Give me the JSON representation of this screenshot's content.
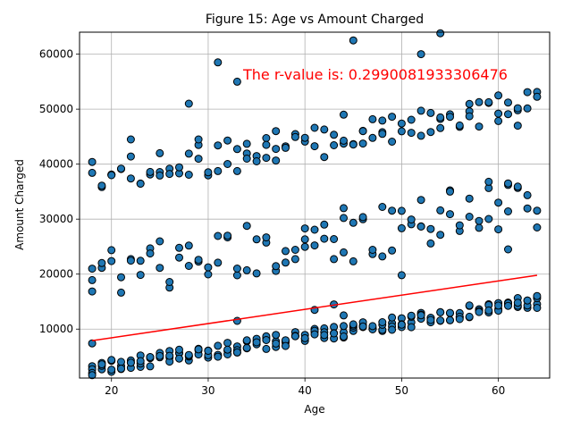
{
  "chart_data": {
    "type": "scatter",
    "title": "Figure 15: Age vs Amount Charged",
    "xlabel": "Age",
    "ylabel": "Amount Charged",
    "xlim": [
      16.7,
      65.3
    ],
    "ylim": [
      1100,
      64000
    ],
    "xticks": [
      20,
      30,
      40,
      50,
      60
    ],
    "yticks": [
      10000,
      20000,
      30000,
      40000,
      50000,
      60000
    ],
    "grid": true,
    "marker_color": "#1f77b4",
    "marker_edge_color": "#000000",
    "annotation": {
      "text": "The r-value is: 0.2990081933306476",
      "color": "#ff0000"
    },
    "regression": {
      "x": [
        18,
        64
      ],
      "y": [
        7900,
        19800
      ],
      "color": "#ff0000"
    },
    "bands": [
      {
        "name": "low",
        "x_start": 18,
        "x_end": 64,
        "y_start": 1500,
        "y_end": 13800,
        "spread": 2400,
        "count": 4
      },
      {
        "name": "middle",
        "x_start": 18,
        "x_end": 64,
        "y_start": 14000,
        "y_end": 28000,
        "spread": 10000,
        "count": 2
      },
      {
        "name": "high",
        "x_start": 18,
        "x_end": 64,
        "y_start": 34500,
        "y_end": 47500,
        "spread": 6000,
        "count": 2
      }
    ],
    "extra_points": [
      {
        "x": 18,
        "y": 7400
      },
      {
        "x": 18,
        "y": 21000
      },
      {
        "x": 20,
        "y": 38000
      },
      {
        "x": 22,
        "y": 44500
      },
      {
        "x": 25,
        "y": 42000
      },
      {
        "x": 28,
        "y": 51000
      },
      {
        "x": 29,
        "y": 44500
      },
      {
        "x": 31,
        "y": 58500
      },
      {
        "x": 33,
        "y": 55000
      },
      {
        "x": 33,
        "y": 11500
      },
      {
        "x": 34,
        "y": 43700
      },
      {
        "x": 36,
        "y": 43500
      },
      {
        "x": 37,
        "y": 46000
      },
      {
        "x": 40,
        "y": 28300
      },
      {
        "x": 41,
        "y": 13500
      },
      {
        "x": 43,
        "y": 14500
      },
      {
        "x": 44,
        "y": 49000
      },
      {
        "x": 44,
        "y": 32000
      },
      {
        "x": 44,
        "y": 12500
      },
      {
        "x": 45,
        "y": 62500
      },
      {
        "x": 46,
        "y": 46000
      },
      {
        "x": 48,
        "y": 45500
      },
      {
        "x": 50,
        "y": 19800
      },
      {
        "x": 52,
        "y": 60000
      },
      {
        "x": 52,
        "y": 33500
      },
      {
        "x": 54,
        "y": 63800
      },
      {
        "x": 55,
        "y": 35000
      },
      {
        "x": 59,
        "y": 36800
      },
      {
        "x": 60,
        "y": 52500
      },
      {
        "x": 61,
        "y": 36500
      },
      {
        "x": 61,
        "y": 24500
      },
      {
        "x": 54,
        "y": 48500
      },
      {
        "x": 57,
        "y": 48700
      },
      {
        "x": 62,
        "y": 47000
      }
    ]
  }
}
